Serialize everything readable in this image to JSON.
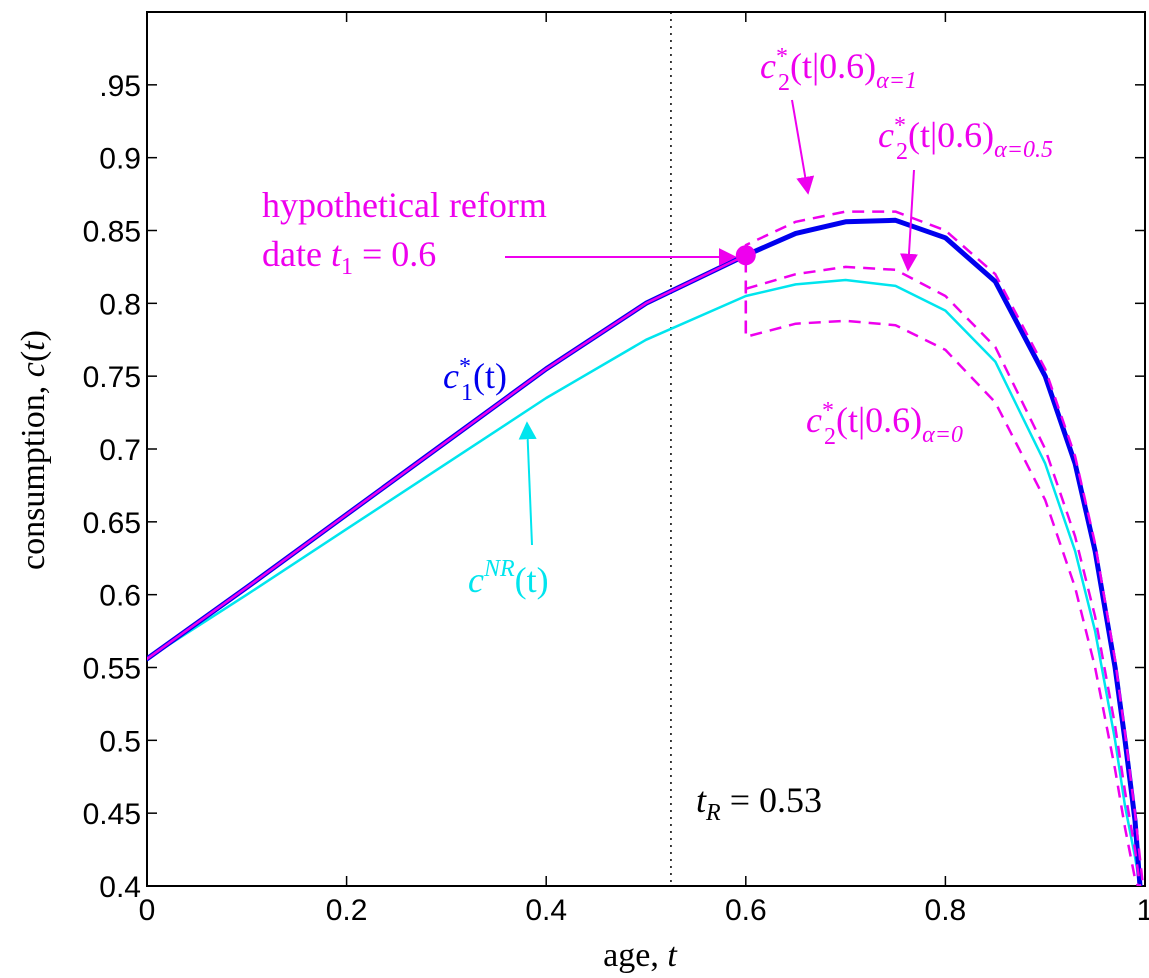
{
  "chart_data": {
    "type": "line",
    "title": "",
    "xlabel": "age, t",
    "ylabel": "consumption, c(t)",
    "xlim": [
      0,
      1
    ],
    "ylim": [
      0.4,
      1.0
    ],
    "x_ticks": [
      0,
      0.2,
      0.4,
      0.6,
      0.8,
      1
    ],
    "x_tick_labels": [
      "0",
      "0.2",
      "0.4",
      "0.6",
      "0.8",
      "1"
    ],
    "y_ticks": [
      0.4,
      0.45,
      0.5,
      0.55,
      0.6,
      0.65,
      0.7,
      0.75,
      0.8,
      0.85,
      0.9,
      0.95
    ],
    "y_tick_labels": [
      "0.4",
      "0.45",
      "0.5",
      "0.55",
      "0.6",
      "0.65",
      "0.7",
      "0.75",
      "0.8",
      "0.85",
      "0.9",
      ".95"
    ],
    "grid": false,
    "retirement_line": {
      "x": 0.525,
      "label": "t_R = 0.53"
    },
    "reform_point": {
      "x": 0.6,
      "y": 0.833
    },
    "series": [
      {
        "key": "c_NR",
        "color": "#00e5ee",
        "style": "solid",
        "x": [
          0.0,
          0.1,
          0.2,
          0.3,
          0.4,
          0.5,
          0.6,
          0.65,
          0.7,
          0.75,
          0.8,
          0.85,
          0.9,
          0.93,
          0.95,
          0.97,
          0.98,
          0.99,
          0.995
        ],
        "y": [
          0.556,
          0.6,
          0.645,
          0.69,
          0.735,
          0.775,
          0.805,
          0.813,
          0.816,
          0.812,
          0.795,
          0.76,
          0.69,
          0.63,
          0.575,
          0.5,
          0.455,
          0.42,
          0.4
        ]
      },
      {
        "key": "c1",
        "color": "#0000ee",
        "style": "solid-thick",
        "x": [
          0.0,
          0.1,
          0.2,
          0.3,
          0.4,
          0.5,
          0.6,
          0.65,
          0.7,
          0.75,
          0.8,
          0.85,
          0.9,
          0.93,
          0.95,
          0.97,
          0.98,
          0.99,
          0.995
        ],
        "y": [
          0.556,
          0.605,
          0.655,
          0.705,
          0.755,
          0.8,
          0.833,
          0.848,
          0.856,
          0.857,
          0.845,
          0.815,
          0.75,
          0.69,
          0.63,
          0.55,
          0.5,
          0.445,
          0.4
        ]
      },
      {
        "key": "c1_pre",
        "color": "#ee00ee",
        "style": "solid-thin",
        "x": [
          0.0,
          0.1,
          0.2,
          0.3,
          0.4,
          0.5,
          0.6
        ],
        "y": [
          0.556,
          0.605,
          0.655,
          0.705,
          0.755,
          0.8,
          0.833
        ]
      },
      {
        "key": "c2_a1",
        "color": "#ee00ee",
        "style": "dashed",
        "x": [
          0.6,
          0.6,
          0.65,
          0.7,
          0.75,
          0.8,
          0.85,
          0.9,
          0.93,
          0.95,
          0.97,
          0.98,
          0.99,
          0.998
        ],
        "y": [
          0.78,
          0.84,
          0.856,
          0.863,
          0.863,
          0.85,
          0.82,
          0.755,
          0.695,
          0.635,
          0.555,
          0.505,
          0.45,
          0.4
        ]
      },
      {
        "key": "c2_a05",
        "color": "#ee00ee",
        "style": "dashed",
        "x": [
          0.6,
          0.65,
          0.7,
          0.75,
          0.8,
          0.85,
          0.9,
          0.93,
          0.95,
          0.97,
          0.98,
          0.99,
          0.995
        ],
        "y": [
          0.81,
          0.82,
          0.825,
          0.823,
          0.805,
          0.77,
          0.7,
          0.64,
          0.585,
          0.51,
          0.465,
          0.425,
          0.4
        ]
      },
      {
        "key": "c2_a0",
        "color": "#ee00ee",
        "style": "dashed",
        "x": [
          0.6,
          0.6,
          0.65,
          0.7,
          0.75,
          0.8,
          0.85,
          0.9,
          0.93,
          0.95,
          0.97,
          0.98,
          0.99,
          0.993
        ],
        "y": [
          0.815,
          0.777,
          0.786,
          0.788,
          0.785,
          0.768,
          0.732,
          0.665,
          0.605,
          0.55,
          0.48,
          0.44,
          0.405,
          0.4
        ]
      }
    ],
    "annotations": {
      "reform_line1": "hypothetical reform",
      "reform_line2_prefix": "date ",
      "reform_t": "t",
      "reform_sub": "1",
      "reform_value": " = 0.6",
      "c1_main": "c",
      "c1_sup": "*",
      "c1_sub": "1",
      "c1_arg": "(t)",
      "cnr_main": "c",
      "cnr_sup": "NR",
      "cnr_arg": "(t)",
      "c2_main": "c",
      "c2_sup": "*",
      "c2_sub": "2",
      "c2_arg": "(t|0.6)",
      "alpha1": "α=1",
      "alpha05": "α=0.5",
      "alpha0": "α=0",
      "tr_t": "t",
      "tr_sub": "R",
      "tr_value": " = 0.53"
    }
  }
}
